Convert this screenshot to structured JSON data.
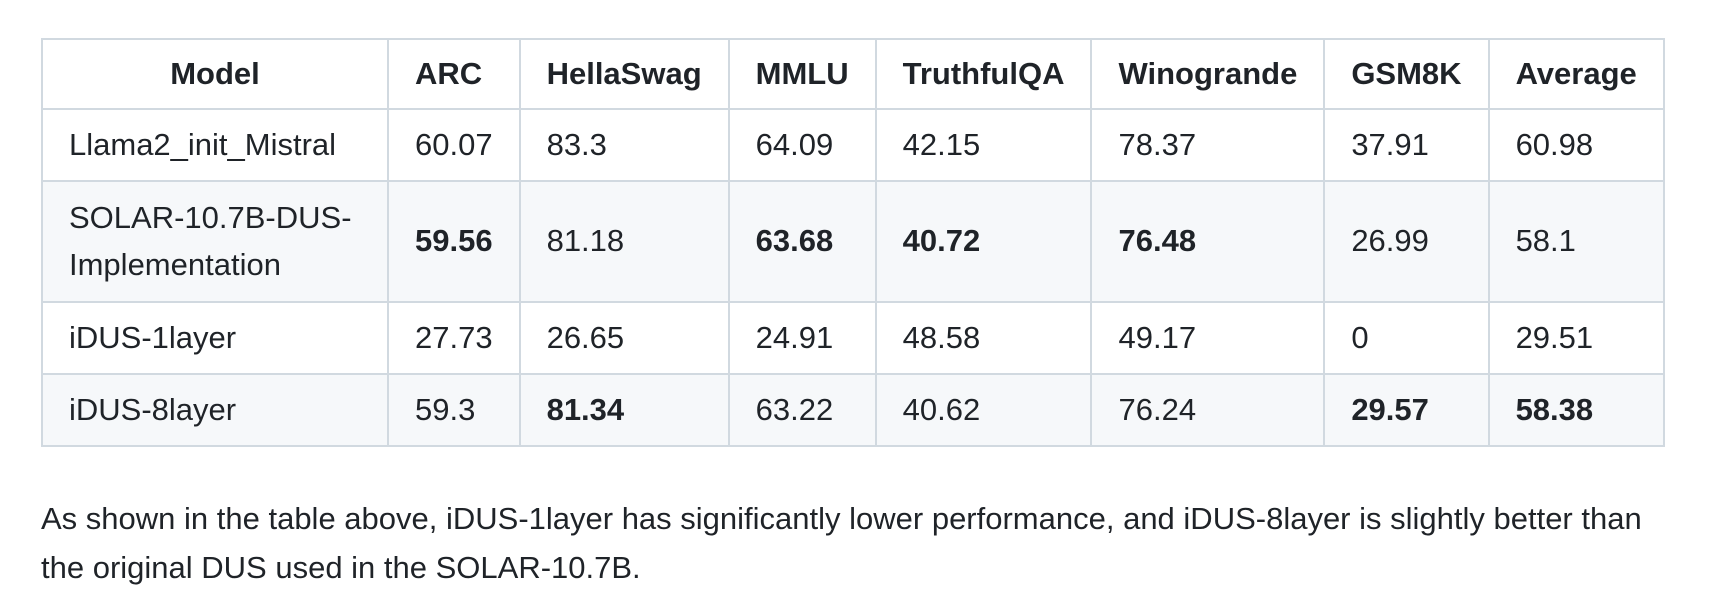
{
  "table": {
    "headers": [
      "Model",
      "ARC",
      "HellaSwag",
      "MMLU",
      "TruthfulQA",
      "Winogrande",
      "GSM8K",
      "Average"
    ],
    "rows": [
      {
        "model": "Llama2_init_Mistral",
        "values": [
          "60.07",
          "83.3",
          "64.09",
          "42.15",
          "78.37",
          "37.91",
          "60.98"
        ],
        "bold": []
      },
      {
        "model": "SOLAR-10.7B-DUS-Implementation",
        "model_line1": "SOLAR-10.7B-DUS-",
        "model_line2": "Implementation",
        "values": [
          "59.56",
          "81.18",
          "63.68",
          "40.72",
          "76.48",
          "26.99",
          "58.1"
        ],
        "bold": [
          "ARC",
          "MMLU",
          "TruthfulQA",
          "Winogrande"
        ]
      },
      {
        "model": "iDUS-1layer",
        "values": [
          "27.73",
          "26.65",
          "24.91",
          "48.58",
          "49.17",
          "0",
          "29.51"
        ],
        "bold": []
      },
      {
        "model": "iDUS-8layer",
        "values": [
          "59.3",
          "81.34",
          "63.22",
          "40.62",
          "76.24",
          "29.57",
          "58.38"
        ],
        "bold": [
          "HellaSwag",
          "GSM8K",
          "Average"
        ]
      }
    ]
  },
  "caption": "As shown in the table above, iDUS-1layer has significantly lower performance, and iDUS-8layer is slightly better than the original DUS used in the SOLAR-10.7B."
}
